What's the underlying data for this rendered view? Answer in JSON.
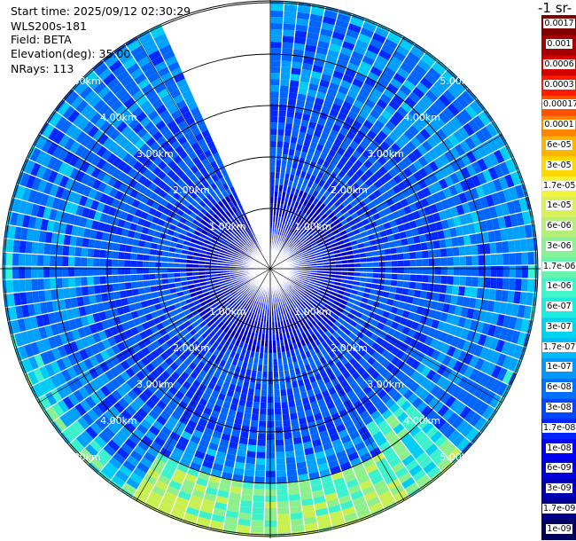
{
  "info": {
    "start_time": "Start time: 2025/09/12 02:30:29",
    "instrument": "WLS200s-181",
    "field": "Field: BETA",
    "elevation": "Elevation(deg): 35.00",
    "nrays": "NRays: 113"
  },
  "chart_data": {
    "type": "heatmap",
    "projection": "polar-ppi",
    "field": "BETA",
    "elevation_deg": 35.0,
    "n_rays": 113,
    "range_rings_km": [
      1,
      2,
      3,
      4,
      5
    ],
    "ring_label_text": [
      "1.00km",
      "2.00km",
      "3.00km",
      "4.00km",
      "5.00km"
    ],
    "grid": true,
    "missing_sector_deg": [
      336,
      360
    ],
    "colorbar": {
      "title": "-1 sr-",
      "position": "right",
      "labels": [
        "0.0017",
        "0.001",
        "0.0006",
        "0.0003",
        "0.00017",
        "0.0001",
        "6e-05",
        "3e-05",
        "1.7e-05",
        "1e-05",
        "6e-06",
        "3e-06",
        "1.7e-06",
        "1e-06",
        "6e-07",
        "3e-07",
        "1.7e-07",
        "1e-07",
        "6e-08",
        "3e-08",
        "1.7e-08",
        "1e-08",
        "6e-09",
        "3e-09",
        "1.7e-09",
        "1e-09"
      ],
      "colors": [
        "#800000",
        "#a80000",
        "#d40000",
        "#ff1a00",
        "#ff5000",
        "#ff8400",
        "#ffb400",
        "#ffd800",
        "#f2f53c",
        "#d9f05a",
        "#b6ee7a",
        "#8af294",
        "#66f4ad",
        "#3ef6c8",
        "#1cecdf",
        "#00d2f0",
        "#00bafc",
        "#0098ff",
        "#0070ff",
        "#0048ff",
        "#0022ff",
        "#0000ff",
        "#0000d8",
        "#0000b0",
        "#000088",
        "#00005a"
      ]
    }
  }
}
